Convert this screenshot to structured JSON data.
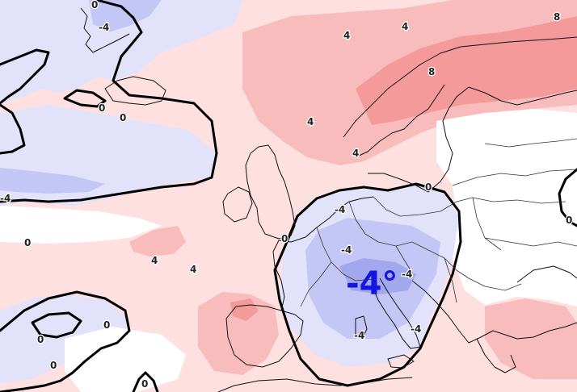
{
  "map": {
    "headline_anomaly": "-4°",
    "colors": {
      "warm_light": "#fde0df",
      "warm_mid": "#f9bcbc",
      "warm_strong": "#f49a9a",
      "cold_light": "#e2e3fb",
      "cold_mid": "#c4c7f5",
      "cold_strong": "#a3a8ee",
      "zero_contour": "#000000",
      "borders": "#111111",
      "headline": "#1515e0"
    },
    "contour_labels": [
      {
        "id": "nw-neg4",
        "text": "-4"
      },
      {
        "id": "nw-0-top",
        "text": "0"
      },
      {
        "id": "n-4",
        "text": "4"
      },
      {
        "id": "n-4b",
        "text": "4"
      },
      {
        "id": "ne-8",
        "text": "8"
      },
      {
        "id": "scand-8",
        "text": "8"
      },
      {
        "id": "atl-0a",
        "text": "0"
      },
      {
        "id": "atl-0b",
        "text": "0"
      },
      {
        "id": "norway-4",
        "text": "4"
      },
      {
        "id": "swe-4",
        "text": "4"
      },
      {
        "id": "w-neg4",
        "text": "-4"
      },
      {
        "id": "atl-0c",
        "text": "0"
      },
      {
        "id": "baltic-0",
        "text": "0"
      },
      {
        "id": "russia-0",
        "text": "0"
      },
      {
        "id": "ger-neg4",
        "text": "-4"
      },
      {
        "id": "fr-0",
        "text": "0"
      },
      {
        "id": "biscay-4",
        "text": "4"
      },
      {
        "id": "atl-4",
        "text": "4"
      },
      {
        "id": "alps-neg4",
        "text": "-4"
      },
      {
        "id": "italy-neg4",
        "text": "-4"
      },
      {
        "id": "med-neg4",
        "text": "-4"
      },
      {
        "id": "adriatic-neg4",
        "text": "-4"
      },
      {
        "id": "sw-0a",
        "text": "0"
      },
      {
        "id": "sw-0b",
        "text": "0"
      },
      {
        "id": "sw-0c",
        "text": "0"
      },
      {
        "id": "sw-0d",
        "text": "0"
      }
    ]
  }
}
